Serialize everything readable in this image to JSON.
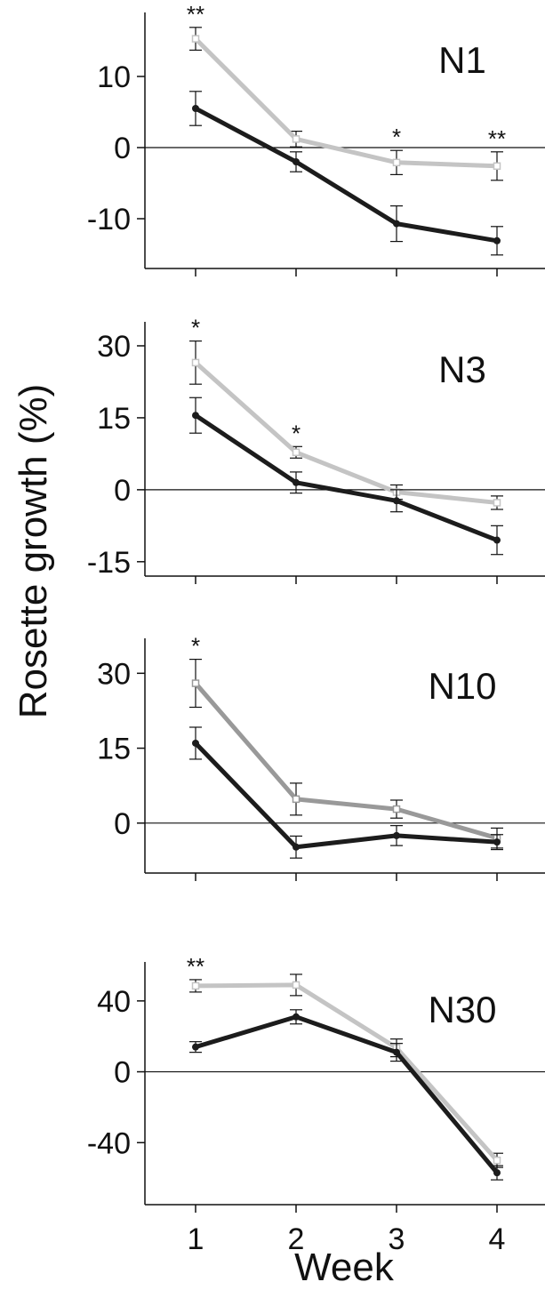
{
  "chart_data": [
    {
      "type": "line",
      "panel_label": "N1",
      "x": [
        1,
        2,
        3,
        4
      ],
      "ylim": [
        -17,
        19
      ],
      "yticks": [
        -10,
        0,
        10
      ],
      "series": [
        {
          "color": "#c4c4c4",
          "marker": "open-square",
          "values": [
            15.3,
            1.2,
            -2.1,
            -2.6
          ],
          "errors": [
            1.6,
            1.1,
            1.7,
            2.0
          ]
        },
        {
          "color": "#1c1c1c",
          "marker": "filled-circle",
          "values": [
            5.5,
            -2.0,
            -10.7,
            -13.1
          ],
          "errors": [
            2.4,
            1.4,
            2.5,
            2.0
          ]
        }
      ],
      "significance": [
        "**",
        "",
        "*",
        "**"
      ]
    },
    {
      "type": "line",
      "panel_label": "N3",
      "x": [
        1,
        2,
        3,
        4
      ],
      "ylim": [
        -18,
        35
      ],
      "yticks": [
        -15,
        0,
        15,
        30
      ],
      "series": [
        {
          "color": "#c4c4c4",
          "marker": "open-square",
          "values": [
            26.5,
            7.8,
            -0.5,
            -2.7
          ],
          "errors": [
            4.5,
            1.2,
            1.5,
            1.4
          ]
        },
        {
          "color": "#1c1c1c",
          "marker": "filled-circle",
          "values": [
            15.5,
            1.5,
            -2.3,
            -10.5
          ],
          "errors": [
            3.7,
            2.2,
            2.3,
            3.0
          ]
        }
      ],
      "significance": [
        "*",
        "*",
        "",
        ""
      ]
    },
    {
      "type": "line",
      "panel_label": "N10",
      "x": [
        1,
        2,
        3,
        4
      ],
      "ylim": [
        -10,
        37
      ],
      "yticks": [
        0,
        15,
        30
      ],
      "series": [
        {
          "color": "#999999",
          "marker": "open-square",
          "values": [
            28.0,
            4.8,
            2.8,
            -3.0
          ],
          "errors": [
            4.8,
            3.2,
            1.8,
            2.0
          ]
        },
        {
          "color": "#1c1c1c",
          "marker": "filled-circle",
          "values": [
            16.0,
            -4.8,
            -2.5,
            -3.8
          ],
          "errors": [
            3.2,
            2.2,
            2.0,
            1.5
          ]
        }
      ],
      "significance": [
        "*",
        "",
        "",
        ""
      ]
    },
    {
      "type": "line",
      "panel_label": "N30",
      "x": [
        1,
        2,
        3,
        4
      ],
      "ylim": [
        -75,
        62
      ],
      "yticks": [
        -40,
        0,
        40
      ],
      "series": [
        {
          "color": "#c4c4c4",
          "marker": "open-square",
          "values": [
            48.5,
            49.0,
            13.5,
            -50.0
          ],
          "errors": [
            3.5,
            6.0,
            5.0,
            4.0
          ]
        },
        {
          "color": "#1c1c1c",
          "marker": "filled-circle",
          "values": [
            14.0,
            31.0,
            11.0,
            -57.0
          ],
          "errors": [
            3.0,
            4.0,
            5.0,
            4.0
          ]
        }
      ],
      "significance": [
        "**",
        "",
        "",
        ""
      ]
    }
  ],
  "xlabel": "Week",
  "ylabel": "Rosette growth (%)",
  "xticks": [
    "1",
    "2",
    "3",
    "4"
  ]
}
